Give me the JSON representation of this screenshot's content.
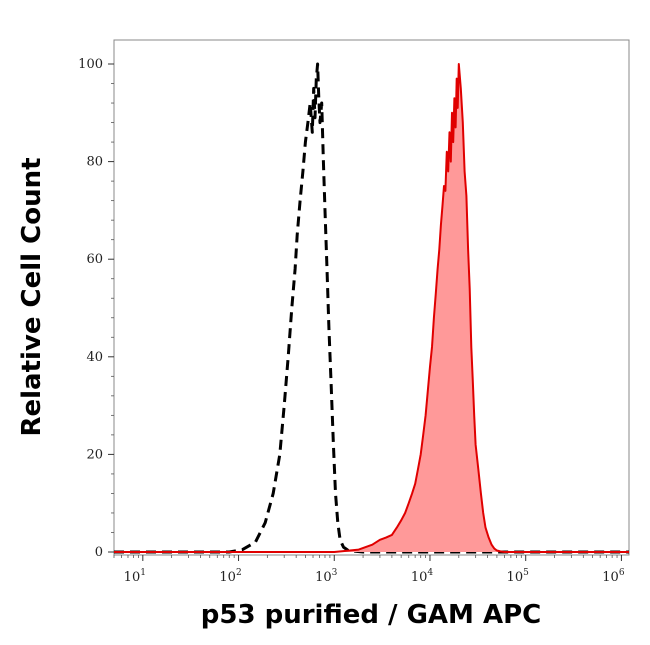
{
  "chart_data": {
    "type": "area",
    "title": "",
    "xlabel": "p53 purified / GAM APC",
    "ylabel": "Relative Cell Count",
    "xscale": "log",
    "xlim": [
      5,
      1200000
    ],
    "ylim": [
      0,
      100
    ],
    "x_ticks": [
      {
        "base": "10",
        "exp": "1",
        "value": 10
      },
      {
        "base": "10",
        "exp": "2",
        "value": 100
      },
      {
        "base": "10",
        "exp": "3",
        "value": 1000
      },
      {
        "base": "10",
        "exp": "4",
        "value": 10000
      },
      {
        "base": "10",
        "exp": "5",
        "value": 100000
      },
      {
        "base": "10",
        "exp": "6",
        "value": 1000000
      }
    ],
    "y_ticks": [
      "0",
      "20",
      "40",
      "60",
      "80",
      "100"
    ],
    "y_tick_values": [
      0,
      20,
      40,
      60,
      80,
      100
    ],
    "grid": false,
    "legend": "none",
    "series": [
      {
        "style": "dashed",
        "color": "#000000",
        "filled": false,
        "x": [
          5,
          80,
          110,
          150,
          190,
          230,
          270,
          300,
          330,
          360,
          390,
          410,
          440,
          470,
          500,
          530,
          560,
          590,
          610,
          630,
          650,
          670,
          690,
          710,
          740,
          770,
          800,
          840,
          880,
          930,
          980,
          1030,
          1090,
          1150,
          1250,
          1400,
          2000,
          10000,
          100000,
          1200000
        ],
        "y": [
          0,
          0,
          0.5,
          2,
          6,
          12,
          20,
          30,
          40,
          50,
          58,
          65,
          72,
          78,
          84,
          88,
          92,
          86,
          95,
          89,
          97,
          100,
          93,
          88,
          92,
          80,
          70,
          58,
          46,
          34,
          22,
          12,
          6,
          2.5,
          1,
          0.3,
          0,
          0,
          0,
          0
        ]
      },
      {
        "style": "solid",
        "color": "#e00000",
        "fill": "#ff9999",
        "filled": true,
        "x": [
          5,
          1000,
          1800,
          2500,
          3000,
          3500,
          4000,
          4500,
          5000,
          5500,
          6000,
          6500,
          7000,
          7500,
          8000,
          8500,
          9000,
          9500,
          10000,
          10500,
          11000,
          11500,
          12000,
          12500,
          13000,
          13500,
          14000,
          14500,
          15000,
          15500,
          16000,
          16500,
          17000,
          17500,
          18000,
          18500,
          19000,
          19500,
          20000,
          21000,
          22000,
          23000,
          24000,
          25000,
          26000,
          27000,
          28000,
          29000,
          30000,
          32000,
          34000,
          36000,
          38000,
          41000,
          44000,
          47000,
          50000,
          55000,
          60000,
          1200000
        ],
        "y": [
          0,
          0,
          0.5,
          1.5,
          2.5,
          3,
          3.5,
          5,
          6.5,
          8,
          10,
          12,
          14,
          17,
          20,
          24,
          28,
          33,
          38,
          42,
          48,
          53,
          58,
          62,
          67,
          71,
          75,
          74,
          82,
          78,
          86,
          80,
          90,
          84,
          93,
          87,
          97,
          91,
          100,
          95,
          88,
          78,
          73,
          62,
          54,
          42,
          35,
          28,
          22,
          17,
          12,
          8,
          5,
          3,
          1.5,
          0.7,
          0.3,
          0.1,
          0,
          0
        ]
      }
    ]
  }
}
